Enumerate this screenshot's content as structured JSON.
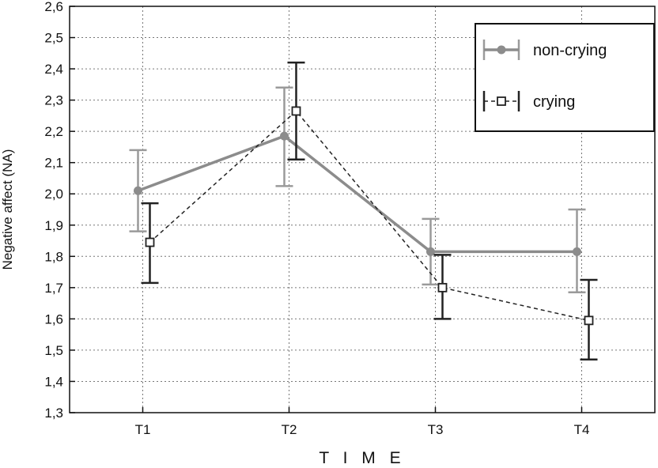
{
  "chart_data": {
    "type": "line",
    "title": "",
    "xlabel": "T I M E",
    "ylabel": "Negative affect (NA)",
    "categories": [
      "T1",
      "T2",
      "T3",
      "T4"
    ],
    "ylim": [
      1.3,
      2.6
    ],
    "yticks": [
      "1,3",
      "1,4",
      "1,5",
      "1,6",
      "1,7",
      "1,8",
      "1,9",
      "2,0",
      "2,1",
      "2,2",
      "2,3",
      "2,4",
      "2,5",
      "2,6"
    ],
    "grid": true,
    "legend_position": "top-right",
    "series": [
      {
        "name": "non-crying",
        "values": [
          2.01,
          2.185,
          1.815,
          1.815
        ],
        "err_low": [
          1.88,
          2.025,
          1.71,
          1.685
        ],
        "err_high": [
          2.14,
          2.34,
          1.92,
          1.95
        ],
        "color": "#8c8c8c",
        "line_style": "solid",
        "marker": "circle"
      },
      {
        "name": "crying",
        "values": [
          1.845,
          2.265,
          1.7,
          1.595
        ],
        "err_low": [
          1.715,
          2.11,
          1.6,
          1.47
        ],
        "err_high": [
          1.97,
          2.42,
          1.805,
          1.725
        ],
        "color": "#222222",
        "line_style": "dashed",
        "marker": "open-square"
      }
    ]
  }
}
